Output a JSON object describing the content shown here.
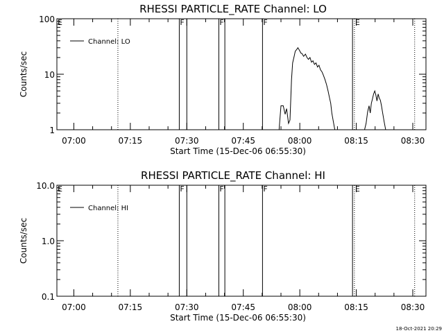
{
  "footer": {
    "timestamp": "18-Oct-2021 20:29"
  },
  "chart_data": [
    {
      "type": "line",
      "title": "RHESSI PARTICLE_RATE Channel: LO",
      "xlabel": "Start Time (15-Dec-06 06:55:30)",
      "ylabel": "Counts/sec",
      "xscale": "time (minutes after 06:55:30)",
      "xlim": [
        0,
        98
      ],
      "yscale": "log",
      "ylim": [
        1,
        100
      ],
      "yticks": [
        1,
        10,
        100
      ],
      "ytick_labels": [
        "1",
        "10",
        "100"
      ],
      "xticks": [
        4.5,
        19.5,
        34.5,
        49.5,
        64.5,
        79.5,
        94.5
      ],
      "xtick_labels": [
        "07:00",
        "07:15",
        "07:30",
        "07:45",
        "08:00",
        "08:15",
        "08:30"
      ],
      "legend": {
        "position": "top-left",
        "entries": [
          "Channel: LO"
        ]
      },
      "vertical_markers": [
        {
          "x": 16.2,
          "style": "dotted",
          "label": ""
        },
        {
          "x": 32.5,
          "style": "solid",
          "label": "F"
        },
        {
          "x": 34.5,
          "style": "solid",
          "label": ""
        },
        {
          "x": 43.0,
          "style": "solid",
          "label": "F"
        },
        {
          "x": 44.6,
          "style": "solid",
          "label": ""
        },
        {
          "x": 54.6,
          "style": "solid",
          "label": "F"
        },
        {
          "x": 78.5,
          "style": "solid",
          "label": ""
        },
        {
          "x": 79.0,
          "style": "dotted",
          "label": "E"
        },
        {
          "x": 95.0,
          "style": "dotted",
          "label": ""
        }
      ],
      "corner_markers": [
        "E"
      ],
      "series": [
        {
          "segments": [
            {
              "x": [
                59.0,
                59.5,
                60.1,
                60.6,
                61.0,
                61.5,
                61.9,
                62.3,
                62.6,
                63.0,
                63.3,
                63.7,
                64.0,
                64.4,
                64.8,
                65.1,
                65.5,
                66.0,
                66.4,
                66.8,
                67.2,
                67.6,
                68.0,
                68.4,
                68.8,
                69.2,
                69.6,
                70.0,
                70.4,
                70.8,
                71.2,
                71.6,
                72.0,
                72.3,
                72.7,
                73.0,
                73.4,
                73.8
              ],
              "y": [
                1.0,
                2.7,
                2.7,
                1.9,
                2.4,
                1.3,
                1.5,
                8.0,
                16.0,
                21.0,
                26.0,
                28.0,
                30.0,
                27.0,
                24.0,
                23.5,
                21.0,
                23.0,
                20.0,
                18.5,
                20.0,
                16.5,
                17.5,
                15.0,
                16.0,
                13.5,
                14.5,
                12.0,
                11.0,
                9.5,
                8.0,
                6.5,
                5.0,
                4.0,
                3.0,
                2.0,
                1.4,
                1.0
              ]
            },
            {
              "x": [
                81.7,
                82.1,
                82.5,
                82.9,
                83.2,
                83.5,
                83.8,
                84.1,
                84.4,
                84.7,
                85.0,
                85.3,
                85.6,
                85.9,
                86.2,
                86.5,
                86.9,
                87.3
              ],
              "y": [
                1.0,
                1.3,
                2.1,
                2.7,
                2.0,
                3.0,
                3.6,
                4.4,
                5.0,
                4.2,
                3.3,
                4.4,
                3.7,
                3.4,
                2.7,
                2.0,
                1.4,
                1.0
              ]
            }
          ]
        }
      ]
    },
    {
      "type": "line",
      "title": "RHESSI PARTICLE_RATE Channel: HI",
      "xlabel": "Start Time (15-Dec-06 06:55:30)",
      "ylabel": "Counts/sec",
      "xscale": "time (minutes after 06:55:30)",
      "xlim": [
        0,
        98
      ],
      "yscale": "log",
      "ylim": [
        0.1,
        10
      ],
      "yticks": [
        0.1,
        1,
        10
      ],
      "ytick_labels": [
        "0.1",
        "1.0",
        "10.0"
      ],
      "xticks": [
        4.5,
        19.5,
        34.5,
        49.5,
        64.5,
        79.5,
        94.5
      ],
      "xtick_labels": [
        "07:00",
        "07:15",
        "07:30",
        "07:45",
        "08:00",
        "08:15",
        "08:30"
      ],
      "legend": {
        "position": "top-left",
        "entries": [
          "Channel: HI"
        ]
      },
      "vertical_markers": [
        {
          "x": 16.2,
          "style": "dotted",
          "label": ""
        },
        {
          "x": 32.5,
          "style": "solid",
          "label": "F"
        },
        {
          "x": 34.5,
          "style": "solid",
          "label": ""
        },
        {
          "x": 43.0,
          "style": "solid",
          "label": "F"
        },
        {
          "x": 44.6,
          "style": "solid",
          "label": ""
        },
        {
          "x": 54.6,
          "style": "solid",
          "label": "F"
        },
        {
          "x": 78.5,
          "style": "solid",
          "label": ""
        },
        {
          "x": 79.0,
          "style": "dotted",
          "label": "E"
        },
        {
          "x": 95.0,
          "style": "dotted",
          "label": ""
        }
      ],
      "corner_markers": [
        "E"
      ],
      "series": [
        {
          "segments": []
        }
      ]
    }
  ]
}
